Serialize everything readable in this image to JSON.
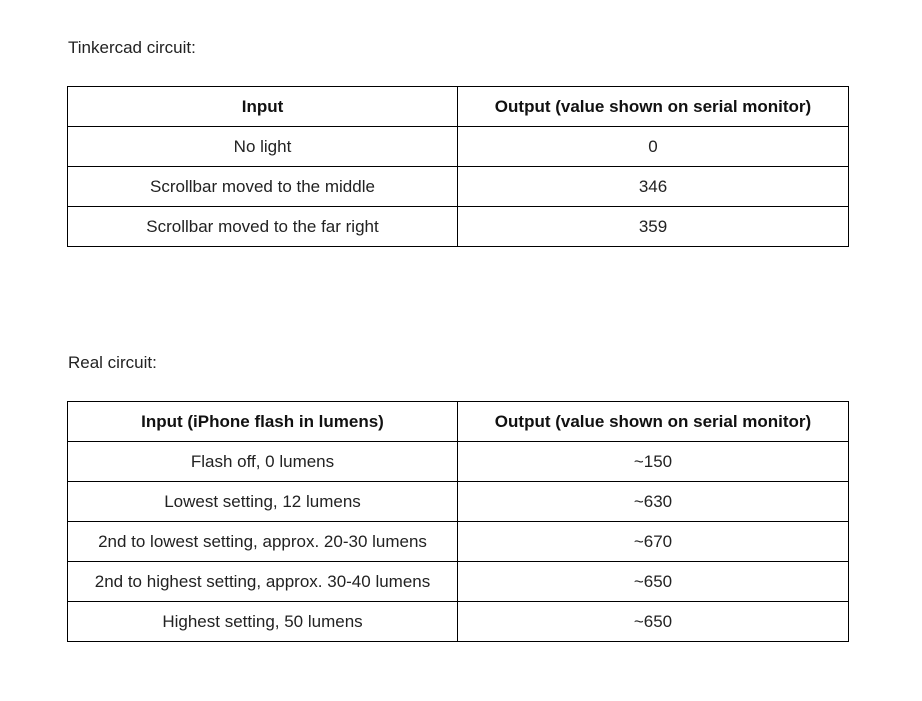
{
  "sections": [
    {
      "heading": "Tinkercad circuit:",
      "table": {
        "headers": [
          "Input",
          "Output (value shown on serial monitor)"
        ],
        "rows": [
          [
            "No light",
            "0"
          ],
          [
            "Scrollbar moved to the middle",
            "346"
          ],
          [
            "Scrollbar moved to the far right",
            "359"
          ]
        ]
      }
    },
    {
      "heading": "Real circuit:",
      "table": {
        "headers": [
          "Input (iPhone flash in lumens)",
          "Output (value shown on serial monitor)"
        ],
        "rows": [
          [
            "Flash off, 0 lumens",
            "~150"
          ],
          [
            "Lowest setting, 12 lumens",
            "~630"
          ],
          [
            "2nd to lowest setting, approx. 20-30 lumens",
            "~670"
          ],
          [
            "2nd to highest setting, approx. 30-40 lumens",
            "~650"
          ],
          [
            "Highest setting, 50 lumens",
            "~650"
          ]
        ]
      }
    }
  ]
}
